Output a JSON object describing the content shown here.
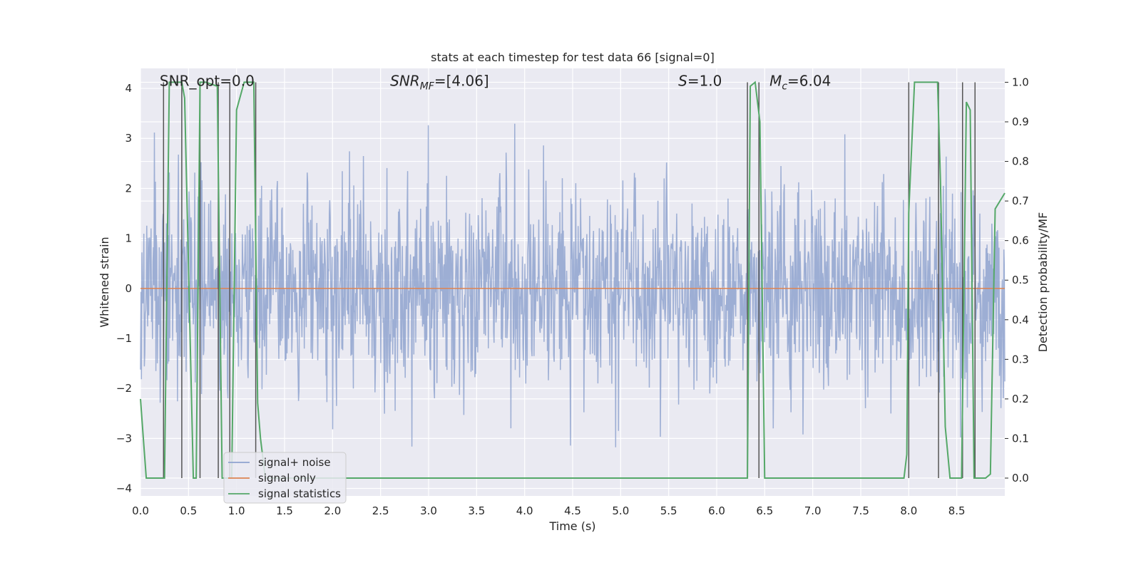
{
  "chart_data": {
    "type": "line",
    "title": "stats at each timestep for test data 66 [signal=0]",
    "xlabel": "Time (s)",
    "ylabel": "Whitened strain",
    "y2label": "Detection probability/MF",
    "xlim": [
      0.0,
      9.0
    ],
    "ylim": [
      -4.15,
      4.4
    ],
    "y2lim": [
      -0.045,
      1.035
    ],
    "xticks": [
      "0.0",
      "0.5",
      "1.0",
      "1.5",
      "2.0",
      "2.5",
      "3.0",
      "3.5",
      "4.0",
      "4.5",
      "5.0",
      "5.5",
      "6.0",
      "6.5",
      "7.0",
      "7.5",
      "8.0",
      "8.5"
    ],
    "yticks": [
      "4",
      "3",
      "2",
      "1",
      "0",
      "−1",
      "−2",
      "−3",
      "−4"
    ],
    "y2ticks": [
      "1.0",
      "0.9",
      "0.8",
      "0.7",
      "0.6",
      "0.5",
      "0.4",
      "0.3",
      "0.2",
      "0.1",
      "0.0"
    ],
    "grid": true,
    "legend_position": "lower-left",
    "annotations": [
      {
        "text": "SNR_opt=0.0",
        "x": 0.2,
        "y": 4.05
      },
      {
        "text": "SNR_MF=[4.06]",
        "x": 2.6,
        "y": 4.05
      },
      {
        "text": "S=1.0",
        "x": 5.6,
        "y": 4.05
      },
      {
        "text": "M_c=6.04",
        "x": 6.55,
        "y": 4.05
      }
    ],
    "series": [
      {
        "name": "signal+ noise",
        "color": "#8fa3cf",
        "kind": "noise",
        "amplitude_std": 1.0,
        "range": [
          -3.65,
          4.0
        ]
      },
      {
        "name": "signal only",
        "color": "#dd8452",
        "values_constant": 0.0
      },
      {
        "name": "signal statistics",
        "color": "#55a868",
        "axis": "right",
        "x": [
          0.0,
          0.03,
          0.06,
          0.1,
          0.2,
          0.25,
          0.3,
          0.4,
          0.43,
          0.46,
          0.55,
          0.58,
          0.62,
          0.65,
          0.68,
          0.8,
          0.85,
          0.95,
          1.0,
          1.08,
          1.15,
          1.18,
          1.22,
          1.25,
          1.3,
          1.35,
          1.4,
          6.28,
          6.32,
          6.35,
          6.4,
          6.45,
          6.5,
          6.53,
          6.56,
          7.95,
          7.98,
          8.0,
          8.06,
          8.1,
          8.3,
          8.33,
          8.38,
          8.43,
          8.55,
          8.6,
          8.62,
          8.64,
          8.68,
          8.72,
          8.75,
          8.8,
          8.85,
          8.9,
          9.0
        ],
        "values": [
          0.2,
          0.1,
          0.0,
          0.0,
          0.0,
          0.0,
          1.0,
          1.0,
          1.0,
          0.96,
          0.0,
          0.0,
          1.0,
          1.0,
          1.0,
          0.99,
          0.0,
          0.0,
          0.93,
          1.0,
          1.0,
          1.0,
          0.19,
          0.1,
          0.0,
          0.0,
          0.0,
          0.0,
          0.0,
          0.99,
          1.0,
          0.9,
          0.0,
          0.0,
          0.0,
          0.0,
          0.06,
          0.67,
          1.0,
          1.0,
          1.0,
          0.75,
          0.13,
          0.0,
          0.0,
          0.95,
          0.94,
          0.93,
          0.0,
          0.0,
          0.0,
          0.0,
          0.01,
          0.68,
          0.72
        ]
      },
      {
        "name": "",
        "color": "#555555",
        "kind": "vlines",
        "axis": "right",
        "x": [
          0.24,
          0.43,
          0.62,
          0.81,
          0.93,
          1.2,
          6.32,
          6.44,
          8.0,
          8.31,
          8.56,
          8.69
        ],
        "y_range": [
          0.0,
          1.0
        ]
      }
    ]
  }
}
